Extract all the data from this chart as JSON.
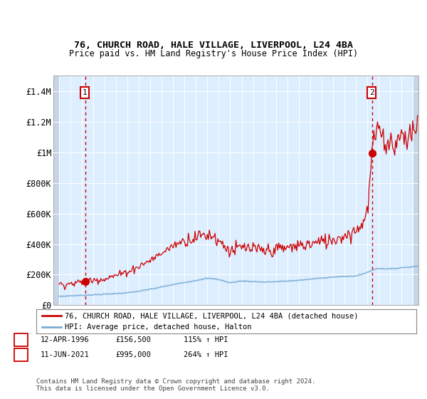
{
  "title1": "76, CHURCH ROAD, HALE VILLAGE, LIVERPOOL, L24 4BA",
  "title2": "Price paid vs. HM Land Registry's House Price Index (HPI)",
  "ylim": [
    0,
    1500000
  ],
  "yticks": [
    0,
    200000,
    400000,
    600000,
    800000,
    1000000,
    1200000,
    1400000
  ],
  "ytick_labels": [
    "£0",
    "£200K",
    "£400K",
    "£600K",
    "£800K",
    "£1M",
    "£1.2M",
    "£1.4M"
  ],
  "xlim_start": 1993.5,
  "xlim_end": 2025.5,
  "sale1_x": 1996.28,
  "sale1_y": 156500,
  "sale1_label": "1",
  "sale1_date": "12-APR-1996",
  "sale1_price": "£156,500",
  "sale1_hpi": "115% ↑ HPI",
  "sale2_x": 2021.44,
  "sale2_y": 995000,
  "sale2_label": "2",
  "sale2_date": "11-JUN-2021",
  "sale2_price": "£995,000",
  "sale2_hpi": "264% ↑ HPI",
  "hpi_color": "#7aadd4",
  "sale_color": "#cc0000",
  "bg_color": "#ddeeff",
  "grid_color": "#c8d8e8",
  "legend_line1": "76, CHURCH ROAD, HALE VILLAGE, LIVERPOOL, L24 4BA (detached house)",
  "legend_line2": "HPI: Average price, detached house, Halton",
  "footer": "Contains HM Land Registry data © Crown copyright and database right 2024.\nThis data is licensed under the Open Government Licence v3.0."
}
